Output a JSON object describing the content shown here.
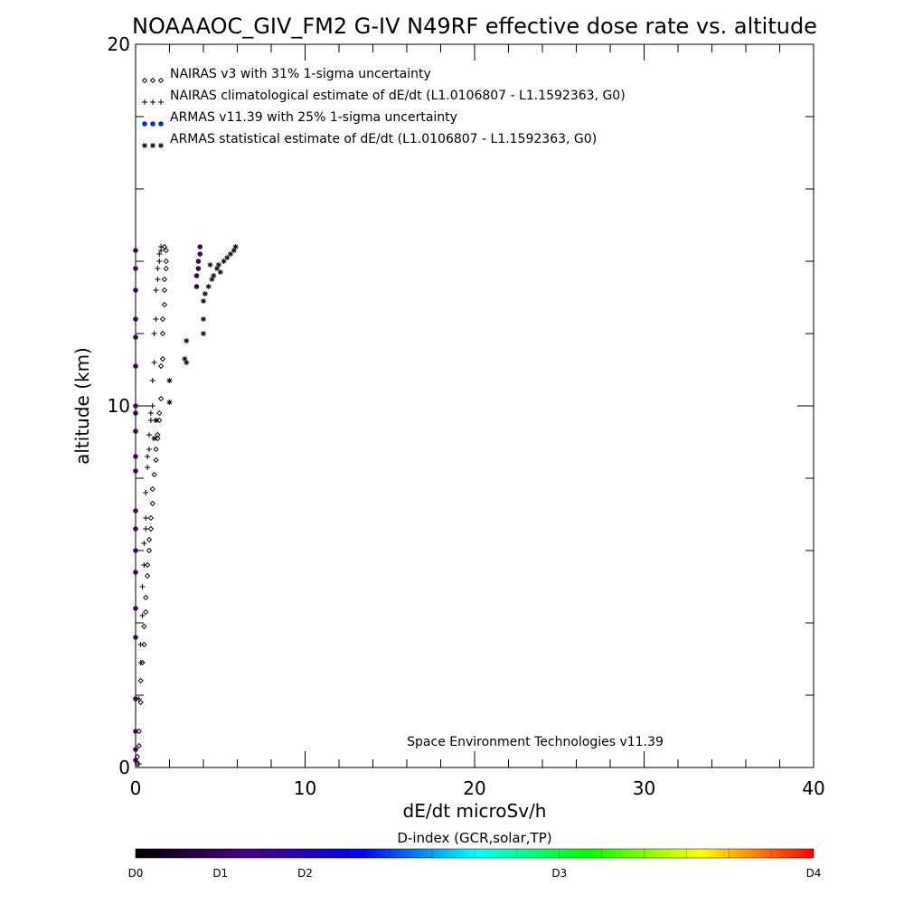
{
  "chart_data": {
    "type": "scatter",
    "title": "NOAAAOC_GIV_FM2 G-IV   N49RF  effective dose rate vs. altitude",
    "xlabel": "dE/dt microSv/h",
    "ylabel": "altitude (km)",
    "xlim": [
      0,
      40
    ],
    "ylim": [
      0,
      20
    ],
    "x_ticks": [
      "0",
      "10",
      "20",
      "30",
      "40"
    ],
    "y_ticks": [
      "0",
      "10",
      "20"
    ],
    "grid": false,
    "legend_position": "top-left",
    "credit": "Space Environment Technologies v11.39",
    "legend": [
      {
        "marker": "diamond",
        "symbols": "◇◇◇",
        "color": "#000000",
        "label": "NAIRAS v3 with 31% 1-sigma uncertainty"
      },
      {
        "marker": "plus",
        "symbols": "+++",
        "color": "#000000",
        "label": "NAIRAS climatological estimate of dE/dt (L1.0106807 - L1.1592363, G0)"
      },
      {
        "marker": "dot",
        "symbols": "●●●",
        "color": "#0033cc",
        "label": "ARMAS v11.39 with 25% 1-sigma uncertainty"
      },
      {
        "marker": "asterisk",
        "symbols": "***",
        "color": "#000000",
        "label": "ARMAS statistical estimate of dE/dt (L1.0106807 - L1.1592363, G0)"
      }
    ],
    "series": [
      {
        "name": "NAIRAS v3 with 31% 1-sigma uncertainty",
        "marker": "diamond",
        "color": "#000000",
        "points": [
          [
            0.1,
            0.1
          ],
          [
            0.1,
            0.3
          ],
          [
            0.2,
            0.6
          ],
          [
            0.2,
            1.0
          ],
          [
            0.3,
            1.8
          ],
          [
            0.3,
            2.4
          ],
          [
            0.4,
            2.9
          ],
          [
            0.5,
            3.4
          ],
          [
            0.5,
            3.9
          ],
          [
            0.6,
            4.3
          ],
          [
            0.6,
            4.7
          ],
          [
            0.7,
            5.3
          ],
          [
            0.7,
            5.6
          ],
          [
            0.8,
            6.0
          ],
          [
            0.8,
            6.3
          ],
          [
            0.9,
            6.6
          ],
          [
            0.9,
            6.9
          ],
          [
            1.0,
            7.3
          ],
          [
            1.0,
            7.7
          ],
          [
            1.1,
            8.1
          ],
          [
            1.2,
            8.5
          ],
          [
            1.2,
            8.8
          ],
          [
            1.3,
            9.1
          ],
          [
            1.3,
            9.2
          ],
          [
            1.4,
            9.6
          ],
          [
            1.4,
            9.8
          ],
          [
            1.5,
            10.2
          ],
          [
            1.5,
            11.1
          ],
          [
            1.6,
            11.3
          ],
          [
            1.6,
            12.0
          ],
          [
            1.6,
            12.4
          ],
          [
            1.7,
            12.8
          ],
          [
            1.7,
            13.2
          ],
          [
            1.7,
            13.5
          ],
          [
            1.8,
            13.8
          ],
          [
            1.8,
            14.0
          ],
          [
            1.8,
            14.3
          ],
          [
            1.7,
            14.4
          ]
        ]
      },
      {
        "name": "NAIRAS climatological estimate of dE/dt (L1.0106807 - L1.1592363, G0)",
        "marker": "plus",
        "color": "#000000",
        "points": [
          [
            0.2,
            0.1
          ],
          [
            0.2,
            1.9
          ],
          [
            0.3,
            2.9
          ],
          [
            0.3,
            3.4
          ],
          [
            0.4,
            4.2
          ],
          [
            0.4,
            5.0
          ],
          [
            0.5,
            5.6
          ],
          [
            0.5,
            6.2
          ],
          [
            0.6,
            6.6
          ],
          [
            0.6,
            6.9
          ],
          [
            0.6,
            7.6
          ],
          [
            0.7,
            8.3
          ],
          [
            0.7,
            8.6
          ],
          [
            0.8,
            8.8
          ],
          [
            0.8,
            9.2
          ],
          [
            0.9,
            9.6
          ],
          [
            0.9,
            9.8
          ],
          [
            1.0,
            10.0
          ],
          [
            1.0,
            10.7
          ],
          [
            1.1,
            11.2
          ],
          [
            1.1,
            12.0
          ],
          [
            1.2,
            12.4
          ],
          [
            1.2,
            13.2
          ],
          [
            1.3,
            13.5
          ],
          [
            1.3,
            13.8
          ],
          [
            1.4,
            14.0
          ],
          [
            1.4,
            14.2
          ],
          [
            1.5,
            14.4
          ],
          [
            1.5,
            14.3
          ]
        ]
      },
      {
        "name": "ARMAS v11.39 with 25% 1-sigma uncertainty",
        "marker": "dot",
        "color": "#3a0a4a",
        "points": [
          [
            0.0,
            0.2
          ],
          [
            0.0,
            0.5
          ],
          [
            0.0,
            1.0
          ],
          [
            0.0,
            1.9
          ],
          [
            0.0,
            3.6
          ],
          [
            0.0,
            4.4
          ],
          [
            0.0,
            5.4
          ],
          [
            0.0,
            6.0
          ],
          [
            0.0,
            6.6
          ],
          [
            0.0,
            7.1
          ],
          [
            0.0,
            8.2
          ],
          [
            0.0,
            8.6
          ],
          [
            0.0,
            9.3
          ],
          [
            0.0,
            9.8
          ],
          [
            0.0,
            10.0
          ],
          [
            0.0,
            11.1
          ],
          [
            0.0,
            11.9
          ],
          [
            0.0,
            12.4
          ],
          [
            0.0,
            13.2
          ],
          [
            0.0,
            13.8
          ],
          [
            0.0,
            14.3
          ],
          [
            3.6,
            13.3
          ],
          [
            3.6,
            13.6
          ],
          [
            3.7,
            13.8
          ],
          [
            3.7,
            14.0
          ],
          [
            3.8,
            14.2
          ],
          [
            3.8,
            14.4
          ]
        ]
      },
      {
        "name": "ARMAS statistical estimate of dE/dt (L1.0106807 - L1.1592363, G0)",
        "marker": "asterisk",
        "color": "#000000",
        "points": [
          [
            1.1,
            9.1
          ],
          [
            1.2,
            9.6
          ],
          [
            2.0,
            10.1
          ],
          [
            2.0,
            10.7
          ],
          [
            2.9,
            11.3
          ],
          [
            3.0,
            11.2
          ],
          [
            3.0,
            11.8
          ],
          [
            4.0,
            12.0
          ],
          [
            4.0,
            12.4
          ],
          [
            4.0,
            12.9
          ],
          [
            4.1,
            13.1
          ],
          [
            4.3,
            13.3
          ],
          [
            4.5,
            13.5
          ],
          [
            4.6,
            13.6
          ],
          [
            4.8,
            13.8
          ],
          [
            4.9,
            13.9
          ],
          [
            5.0,
            13.7
          ],
          [
            4.4,
            13.9
          ],
          [
            5.2,
            14.0
          ],
          [
            5.4,
            14.1
          ],
          [
            5.6,
            14.2
          ],
          [
            5.8,
            14.3
          ],
          [
            5.9,
            14.4
          ]
        ]
      }
    ],
    "colorbar": {
      "title": "D-index (GCR,solar,TP)",
      "labels": [
        {
          "text": "D0",
          "value": 0.0
        },
        {
          "text": "D1",
          "value": 1.0
        },
        {
          "text": "D2",
          "value": 2.0
        },
        {
          "text": "D3",
          "value": 3.0
        },
        {
          "text": "D4",
          "value": 4.0
        }
      ],
      "colors": [
        "#000000",
        "#4b0082",
        "#0000ff",
        "#00ffff",
        "#00ff00",
        "#ffff00",
        "#ff0000"
      ]
    }
  }
}
